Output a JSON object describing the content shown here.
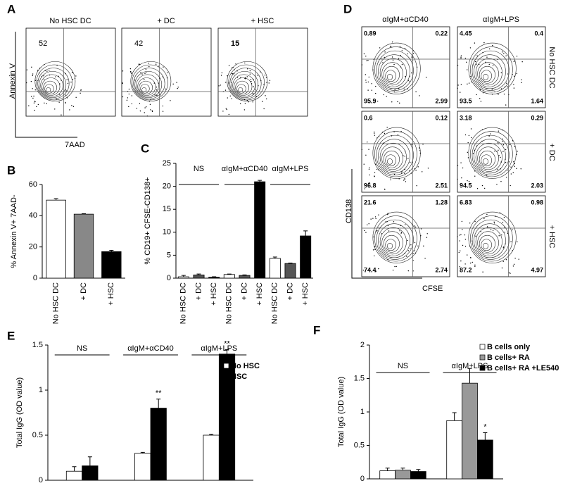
{
  "panel_labels": [
    "A",
    "B",
    "C",
    "D",
    "E",
    "F"
  ],
  "flow_a": {
    "titles": [
      "No HSC DC",
      "+ DC",
      "+ HSC"
    ],
    "values": [
      52,
      42,
      15
    ],
    "y_label": "Annexin V",
    "x_label": "7AAD"
  },
  "flow_d": {
    "columns": [
      "αIgM+αCD40",
      "αIgM+LPS"
    ],
    "rows": [
      "No HSC DC",
      "+ DC",
      "+ HSC"
    ],
    "quadrants": [
      [
        [
          0.89,
          0.22,
          95.9,
          2.99
        ],
        [
          4.45,
          0.4,
          93.5,
          1.64
        ]
      ],
      [
        [
          0.6,
          0.12,
          96.8,
          2.51
        ],
        [
          3.18,
          0.29,
          94.5,
          2.03
        ]
      ],
      [
        [
          21.6,
          1.28,
          74.4,
          2.74
        ],
        [
          6.83,
          0.98,
          87.2,
          4.97
        ]
      ]
    ],
    "y_label": "CD138",
    "x_label": "CFSE"
  },
  "chart_data": [
    {
      "type": "bar",
      "y_label": "% Annexin V+ 7AAD-",
      "categories": [
        "No HSC DC",
        "+ DC",
        "+ HSC"
      ],
      "values": [
        50,
        41,
        17
      ],
      "errors": [
        1,
        0.3,
        0.8
      ],
      "colors": [
        "#ffffff",
        "#888888",
        "#000000"
      ],
      "ylim": [
        0,
        60
      ],
      "yticks": [
        0,
        20,
        40,
        60
      ]
    },
    {
      "type": "bar",
      "y_label": "% CD19+ CFSE-CD138+",
      "groups": [
        "NS",
        "αIgM+αCD40",
        "αIgM+LPS"
      ],
      "categories": [
        "No HSC DC",
        "+ DC",
        "+ HSC",
        "No HSC DC",
        "+ DC",
        "+ HSC",
        "No HSC DC",
        "+ DC",
        "+ HSC"
      ],
      "values": [
        0.3,
        0.7,
        0.2,
        0.8,
        0.6,
        21,
        4.3,
        3.2,
        9.2
      ],
      "errors": [
        0.3,
        0.2,
        0.1,
        0.1,
        0.1,
        0.3,
        0.3,
        0.1,
        1.1
      ],
      "colors": [
        "#ffffff",
        "#555555",
        "#000000"
      ],
      "ylim": [
        0,
        25
      ],
      "yticks": [
        0,
        5,
        10,
        15,
        20,
        25
      ]
    },
    {
      "type": "bar",
      "y_label": "Total IgG (OD value)",
      "categories": [
        "NS",
        "αIgM+αCD40",
        "αIgM+LPS"
      ],
      "series": [
        {
          "name": "No HSC",
          "color": "#ffffff",
          "values": [
            0.1,
            0.3,
            0.5
          ],
          "errors": [
            0.05,
            0.01,
            0.01
          ]
        },
        {
          "name": "HSC",
          "color": "#000000",
          "values": [
            0.16,
            0.8,
            1.4
          ],
          "errors": [
            0.1,
            0.1,
            0.05
          ]
        }
      ],
      "annotations": [
        "**",
        "**"
      ],
      "ylim": [
        0,
        1.5
      ],
      "yticks": [
        0,
        0.5,
        1,
        1.5
      ]
    },
    {
      "type": "bar",
      "y_label": "Total IgG (OD value)",
      "categories": [
        "NS",
        "αIgM+LPS"
      ],
      "series": [
        {
          "name": "B cells only",
          "color": "#ffffff",
          "values": [
            0.12,
            0.87
          ],
          "errors": [
            0.04,
            0.12
          ]
        },
        {
          "name": "B cells+ RA",
          "color": "#999999",
          "values": [
            0.13,
            1.43
          ],
          "errors": [
            0.03,
            0.22
          ]
        },
        {
          "name": "B cells+ RA +LE540",
          "color": "#000000",
          "values": [
            0.11,
            0.58
          ],
          "errors": [
            0.03,
            0.11
          ]
        }
      ],
      "annotations": [
        "*"
      ],
      "ylim": [
        0,
        2
      ],
      "yticks": [
        0,
        0.5,
        1,
        1.5,
        2
      ]
    }
  ]
}
